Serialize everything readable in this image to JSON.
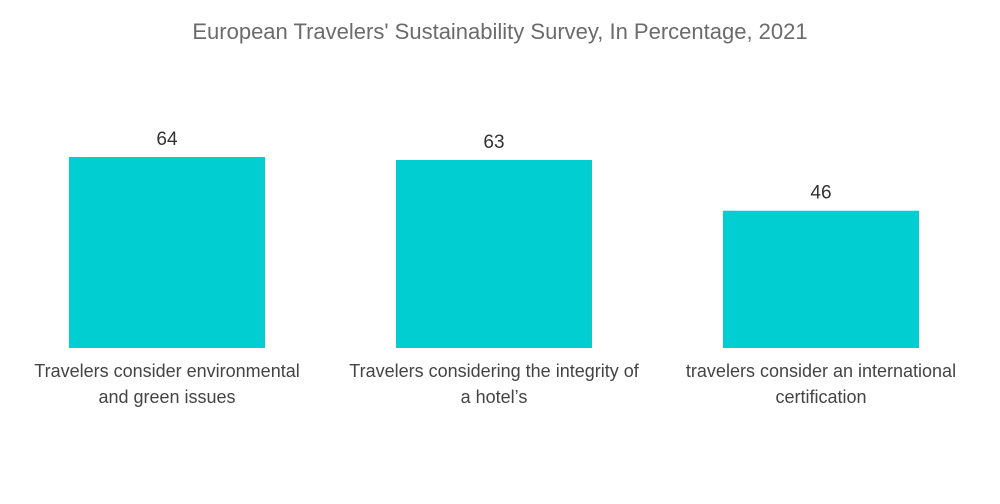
{
  "chart_data": {
    "type": "bar",
    "title": "European Travelers' Sustainability Survey, In Percentage, 2021",
    "categories": [
      [
        "Travelers consider environmental",
        "and green issues"
      ],
      [
        "Travelers considering the integrity of",
        "a hotel’s"
      ],
      [
        "travelers consider an international",
        "certification"
      ]
    ],
    "values": [
      64,
      63,
      46
    ],
    "ylim": [
      0,
      64
    ],
    "grid": false,
    "legend": "none",
    "bar_color": "#00CED1"
  }
}
